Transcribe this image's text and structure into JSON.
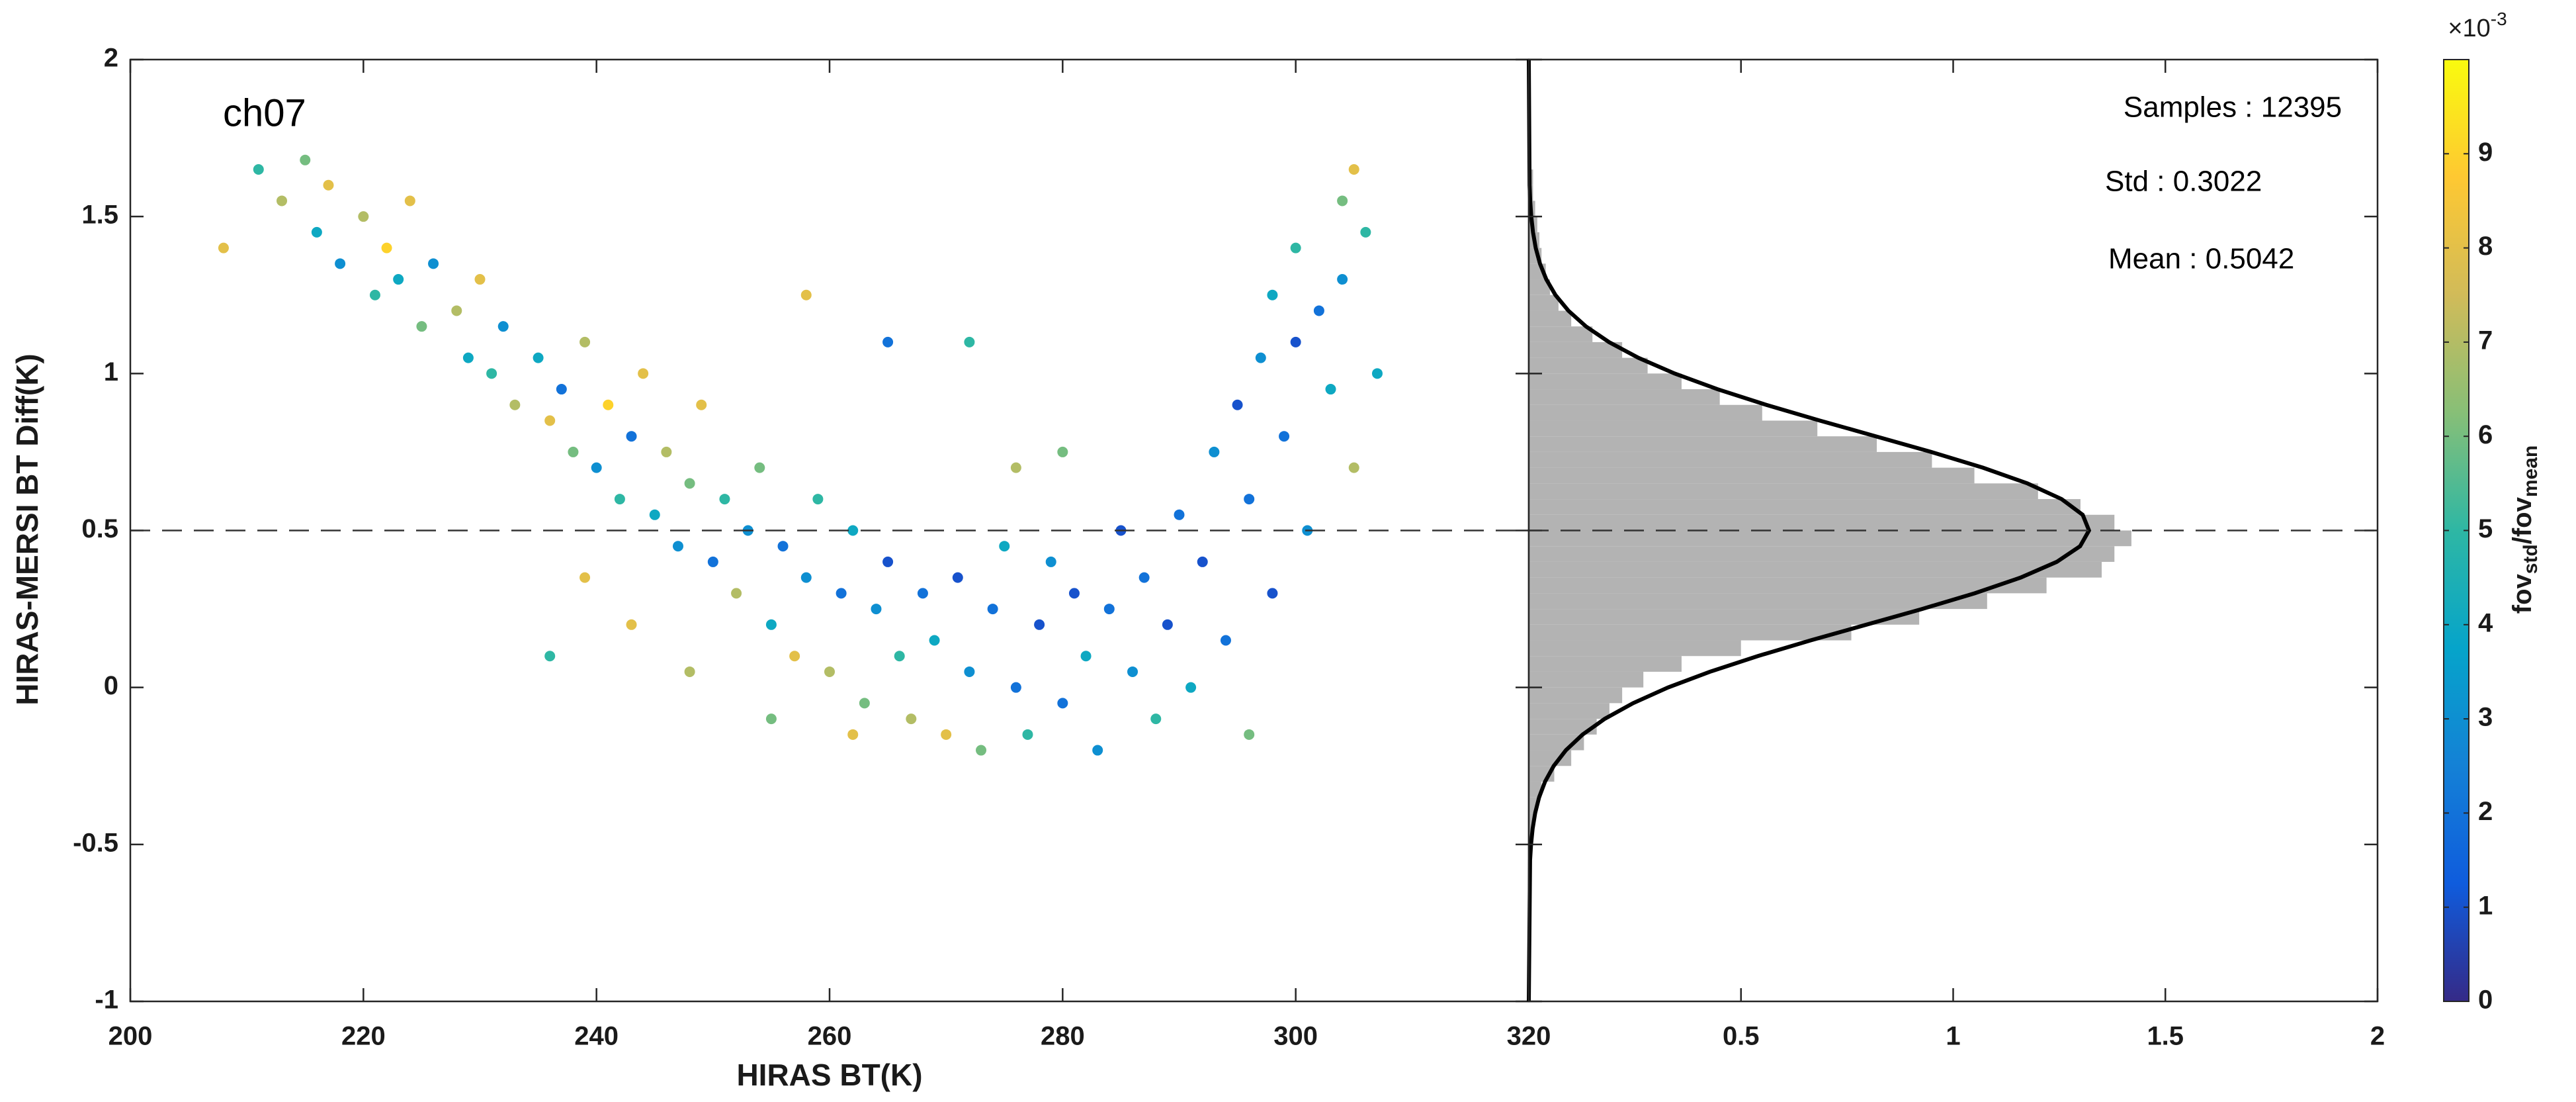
{
  "chart_data": [
    {
      "type": "scatter",
      "annotation": "ch07",
      "x_label": "HIRAS BT(K)",
      "y_label": "HIRAS-MERSI BT Diff(K)",
      "xlim": [
        200,
        320
      ],
      "xticks": [
        200,
        220,
        240,
        260,
        280,
        300,
        320
      ],
      "ylim": [
        -1,
        2
      ],
      "yticks": [
        -1,
        -0.5,
        0,
        0.5,
        1,
        1.5,
        2
      ],
      "reference_line": 0.5,
      "x": [
        208,
        211,
        213,
        215,
        216,
        217,
        218,
        220,
        221,
        222,
        223,
        224,
        225,
        226,
        228,
        229,
        230,
        231,
        232,
        233,
        235,
        236,
        237,
        238,
        239,
        240,
        241,
        242,
        243,
        244,
        245,
        246,
        247,
        248,
        249,
        250,
        251,
        252,
        253,
        254,
        255,
        256,
        257,
        258,
        259,
        260,
        261,
        262,
        263,
        264,
        265,
        266,
        267,
        268,
        269,
        270,
        271,
        272,
        273,
        274,
        275,
        276,
        277,
        278,
        279,
        280,
        281,
        282,
        283,
        284,
        285,
        286,
        287,
        288,
        289,
        290,
        291,
        292,
        293,
        294,
        295,
        296,
        296,
        297,
        298,
        298,
        299,
        300,
        300,
        301,
        302,
        303,
        304,
        304,
        305,
        306,
        307,
        305,
        243,
        248,
        255,
        262,
        276,
        280,
        258,
        265,
        272,
        236,
        239
      ],
      "values": [
        1.4,
        1.65,
        1.55,
        1.68,
        1.45,
        1.6,
        1.35,
        1.5,
        1.25,
        1.4,
        1.3,
        1.55,
        1.15,
        1.35,
        1.2,
        1.05,
        1.3,
        1.0,
        1.15,
        0.9,
        1.05,
        0.85,
        0.95,
        0.75,
        1.1,
        0.7,
        0.9,
        0.6,
        0.8,
        1.0,
        0.55,
        0.75,
        0.45,
        0.65,
        0.9,
        0.4,
        0.6,
        0.3,
        0.5,
        0.7,
        0.2,
        0.45,
        0.1,
        0.35,
        0.6,
        0.05,
        0.3,
        0.5,
        -0.05,
        0.25,
        0.4,
        0.1,
        -0.1,
        0.3,
        0.15,
        -0.15,
        0.35,
        0.05,
        -0.2,
        0.25,
        0.45,
        0.0,
        -0.15,
        0.2,
        0.4,
        -0.05,
        0.3,
        0.1,
        -0.2,
        0.25,
        0.5,
        0.05,
        0.35,
        -0.1,
        0.2,
        0.55,
        0.0,
        0.4,
        0.75,
        0.15,
        0.9,
        -0.15,
        0.6,
        1.05,
        0.3,
        1.25,
        0.8,
        1.1,
        1.4,
        0.5,
        1.2,
        0.95,
        1.55,
        1.3,
        0.7,
        1.45,
        1.0,
        1.65,
        0.2,
        0.05,
        -0.1,
        -0.15,
        0.7,
        0.75,
        1.25,
        1.1,
        1.1,
        0.1,
        0.35
      ],
      "color_values": [
        8,
        5,
        7,
        6,
        4,
        8,
        3,
        7,
        5,
        9,
        4,
        8,
        6,
        3,
        7,
        4,
        8,
        5,
        3,
        7,
        4,
        8,
        2,
        6,
        7,
        3,
        9,
        5,
        2,
        8,
        4,
        7,
        3,
        6,
        8,
        2,
        5,
        7,
        3,
        6,
        4,
        2,
        8,
        3,
        5,
        7,
        2,
        4,
        6,
        3,
        1,
        5,
        7,
        2,
        4,
        8,
        1,
        3,
        6,
        2,
        4,
        2,
        5,
        1,
        3,
        2,
        1,
        4,
        3,
        2,
        1,
        3,
        2,
        5,
        1,
        2,
        4,
        1,
        3,
        2,
        1,
        6,
        2,
        3,
        1,
        4,
        2,
        1,
        5,
        3,
        2,
        4,
        6,
        3,
        7,
        5,
        4,
        8,
        8,
        7,
        6,
        8,
        7,
        6,
        8,
        2,
        5,
        5,
        8
      ],
      "colormap": [
        "#352a87",
        "#0f5cdd",
        "#1481d6",
        "#06a4ca",
        "#2eb7a4",
        "#87bf77",
        "#d1bb59",
        "#fec832",
        "#f9fb0e"
      ],
      "colorbar": {
        "lim": [
          0,
          10
        ],
        "ticks": [
          0,
          1,
          2,
          3,
          4,
          5,
          6,
          7,
          8,
          9
        ],
        "label": [
          "fov",
          "std",
          "/fov",
          "mean"
        ],
        "scale": [
          "×10",
          "-3"
        ]
      }
    },
    {
      "type": "histogram",
      "orientation": "horizontal",
      "color": "#b3b3b3",
      "xlim": [
        0,
        2
      ],
      "xticks": [
        0.5,
        1,
        1.5,
        2
      ],
      "ylim": [
        -1,
        2
      ],
      "yticks": [
        -1,
        -0.5,
        0,
        0.5,
        1,
        1.5,
        2
      ],
      "show_ytick_labels": false,
      "reference_line": 0.5,
      "bins": [
        -0.5,
        -0.45,
        -0.4,
        -0.35,
        -0.3,
        -0.25,
        -0.2,
        -0.15,
        -0.1,
        -0.05,
        0,
        0.05,
        0.1,
        0.15,
        0.2,
        0.25,
        0.3,
        0.35,
        0.4,
        0.45,
        0.5,
        0.55,
        0.6,
        0.65,
        0.7,
        0.75,
        0.8,
        0.85,
        0.9,
        0.95,
        1.0,
        1.05,
        1.1,
        1.15,
        1.2,
        1.25,
        1.3,
        1.35,
        1.4,
        1.45,
        1.5,
        1.55,
        1.6,
        1.65,
        1.7
      ],
      "values": [
        0.01,
        0.01,
        0.02,
        0.03,
        0.06,
        0.1,
        0.13,
        0.16,
        0.19,
        0.22,
        0.27,
        0.36,
        0.5,
        0.76,
        0.92,
        1.08,
        1.22,
        1.35,
        1.38,
        1.42,
        1.38,
        1.3,
        1.2,
        1.05,
        0.95,
        0.82,
        0.68,
        0.55,
        0.45,
        0.36,
        0.28,
        0.22,
        0.15,
        0.1,
        0.07,
        0.05,
        0.04,
        0.03,
        0.025,
        0.02,
        0.015,
        0.01,
        0.01,
        0.005
      ],
      "fit": {
        "y": [
          -1,
          -0.55,
          -0.5,
          -0.45,
          -0.4,
          -0.35,
          -0.3,
          -0.25,
          -0.2,
          -0.15,
          -0.1,
          -0.05,
          0,
          0.05,
          0.1,
          0.15,
          0.2,
          0.25,
          0.3,
          0.35,
          0.4,
          0.45,
          0.5,
          0.55,
          0.6,
          0.65,
          0.7,
          0.75,
          0.8,
          0.85,
          0.9,
          0.95,
          1.0,
          1.05,
          1.1,
          1.15,
          1.2,
          1.25,
          1.3,
          1.35,
          1.4,
          1.45,
          1.5,
          1.55,
          1.6,
          2
        ],
        "values": [
          0,
          0.003,
          0.0053,
          0.009,
          0.015,
          0.0243,
          0.0383,
          0.0587,
          0.0874,
          0.1268,
          0.1789,
          0.2458,
          0.3282,
          0.4268,
          0.5397,
          0.6642,
          0.7955,
          0.9268,
          1.0508,
          1.159,
          1.244,
          1.2991,
          1.3201,
          1.3052,
          1.2555,
          1.1751,
          1.0702,
          0.9484,
          0.8177,
          0.686,
          0.5599,
          0.4448,
          0.3437,
          0.2584,
          0.1891,
          0.1347,
          0.0933,
          0.0628,
          0.0412,
          0.0263,
          0.0163,
          0.0099,
          0.0058,
          0.0033,
          0.0018,
          0
        ]
      },
      "annotations": [
        "Samples : 12395",
        "Std : 0.3022",
        "Mean : 0.5042"
      ]
    }
  ]
}
